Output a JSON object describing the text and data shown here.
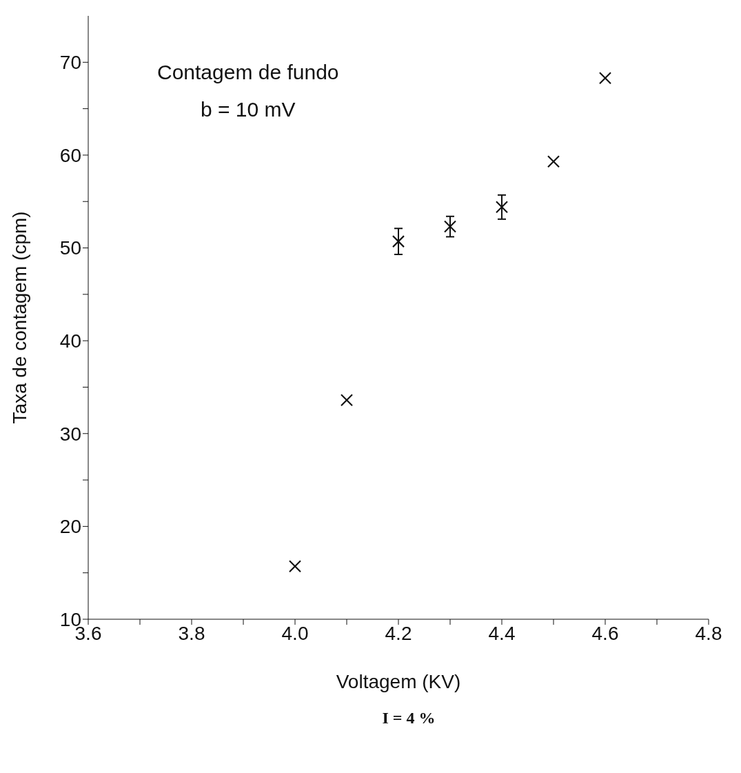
{
  "chart_data": {
    "type": "scatter",
    "xlabel": "Voltagem (KV)",
    "ylabel": "Taxa de contagem (cpm)",
    "x": [
      4.0,
      4.1,
      4.2,
      4.3,
      4.4,
      4.5,
      4.6
    ],
    "series": [
      {
        "color": "#111111",
        "values": [
          15.7,
          33.6,
          50.7,
          52.3,
          54.4,
          59.3,
          68.3
        ],
        "errors": [
          null,
          null,
          1.4,
          1.1,
          1.3,
          null,
          null
        ]
      }
    ],
    "xlim": [
      3.6,
      4.8
    ],
    "xticks": [
      3.6,
      {
        "value": 3.7,
        "label": null
      },
      3.8,
      {
        "value": 3.9,
        "label": null
      },
      {
        "value": 4,
        "label": "4.0"
      },
      {
        "value": 4.1,
        "label": null
      },
      4.2,
      {
        "value": 4.3,
        "label": null
      },
      4.4,
      {
        "value": 4.5,
        "label": null
      },
      4.6,
      {
        "value": 4.7,
        "label": null
      },
      4.8
    ],
    "ylim": [
      10,
      75
    ],
    "yticks": [
      10,
      {
        "value": 15,
        "label": null
      },
      20,
      {
        "value": 25,
        "label": null
      },
      30,
      {
        "value": 35,
        "label": null
      },
      40,
      {
        "value": 45,
        "label": null
      },
      50,
      {
        "value": 55,
        "label": null
      },
      60,
      {
        "value": 65,
        "label": null
      },
      70
    ],
    "marker": "cross",
    "grid": false,
    "legend": false,
    "annotations": [
      "Contagem de fundo\nb = 10 mV",
      "I = 4 %"
    ]
  }
}
